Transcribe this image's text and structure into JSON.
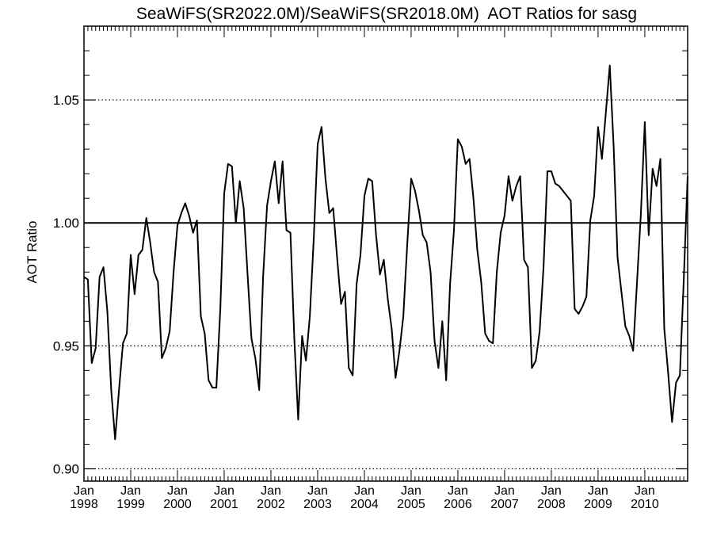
{
  "chart_data": {
    "type": "line",
    "title": "SeaWiFS(SR2022.0M)/SeaWiFS(SR2018.0M)  AOT Ratios for sasg",
    "ylabel": "AOT Ratio",
    "xlabel": "",
    "x_range": [
      "1998-01",
      "2010-12"
    ],
    "ylim": [
      0.895,
      1.08
    ],
    "yticks": [
      {
        "value": 0.9,
        "label": "0.90"
      },
      {
        "value": 0.95,
        "label": "0.95"
      },
      {
        "value": 1.0,
        "label": "1.00"
      },
      {
        "value": 1.05,
        "label": "1.05"
      }
    ],
    "xticks": [
      {
        "month": "Jan",
        "year": "1998",
        "date": "1998-01"
      },
      {
        "month": "Jan",
        "year": "1999",
        "date": "1999-01"
      },
      {
        "month": "Jan",
        "year": "2000",
        "date": "2000-01"
      },
      {
        "month": "Jan",
        "year": "2001",
        "date": "2001-01"
      },
      {
        "month": "Jan",
        "year": "2002",
        "date": "2002-01"
      },
      {
        "month": "Jan",
        "year": "2003",
        "date": "2003-01"
      },
      {
        "month": "Jan",
        "year": "2004",
        "date": "2004-01"
      },
      {
        "month": "Jan",
        "year": "2005",
        "date": "2005-01"
      },
      {
        "month": "Jan",
        "year": "2006",
        "date": "2006-01"
      },
      {
        "month": "Jan",
        "year": "2007",
        "date": "2007-01"
      },
      {
        "month": "Jan",
        "year": "2008",
        "date": "2008-01"
      },
      {
        "month": "Jan",
        "year": "2009",
        "date": "2009-01"
      },
      {
        "month": "Jan",
        "year": "2010",
        "date": "2010-01"
      }
    ],
    "grid": "dotted horizontal lines at labeled y ticks",
    "reference_line": 1.0,
    "series": [
      {
        "x": [
          "1998-01",
          "1998-02",
          "1998-03",
          "1998-04",
          "1998-05",
          "1998-06",
          "1998-07",
          "1998-08",
          "1998-09",
          "1998-10",
          "1998-11",
          "1998-12",
          "1999-01",
          "1999-02",
          "1999-03",
          "1999-04",
          "1999-05",
          "1999-06",
          "1999-07",
          "1999-08",
          "1999-09",
          "1999-10",
          "1999-11",
          "1999-12",
          "2000-01",
          "2000-02",
          "2000-03",
          "2000-04",
          "2000-05",
          "2000-06",
          "2000-07",
          "2000-08",
          "2000-09",
          "2000-10",
          "2000-11",
          "2000-12",
          "2001-01",
          "2001-02",
          "2001-03",
          "2001-04",
          "2001-05",
          "2001-06",
          "2001-07",
          "2001-08",
          "2001-09",
          "2001-10",
          "2001-11",
          "2001-12",
          "2002-01",
          "2002-02",
          "2002-03",
          "2002-04",
          "2002-05",
          "2002-06",
          "2002-07",
          "2002-08",
          "2002-09",
          "2002-10",
          "2002-11",
          "2002-12",
          "2003-01",
          "2003-02",
          "2003-03",
          "2003-04",
          "2003-05",
          "2003-06",
          "2003-07",
          "2003-08",
          "2003-09",
          "2003-10",
          "2003-11",
          "2003-12",
          "2004-01",
          "2004-02",
          "2004-03",
          "2004-04",
          "2004-05",
          "2004-06",
          "2004-07",
          "2004-08",
          "2004-09",
          "2004-10",
          "2004-11",
          "2004-12",
          "2005-01",
          "2005-02",
          "2005-03",
          "2005-04",
          "2005-05",
          "2005-06",
          "2005-07",
          "2005-08",
          "2005-09",
          "2005-10",
          "2005-11",
          "2005-12",
          "2006-01",
          "2006-02",
          "2006-03",
          "2006-04",
          "2006-05",
          "2006-06",
          "2006-07",
          "2006-08",
          "2006-09",
          "2006-10",
          "2006-11",
          "2006-12",
          "2007-01",
          "2007-02",
          "2007-03",
          "2007-04",
          "2007-05",
          "2007-06",
          "2007-07",
          "2007-08",
          "2007-09",
          "2007-10",
          "2007-11",
          "2007-12",
          "2008-01",
          "2008-02",
          "2008-03",
          "2008-04",
          "2008-05",
          "2008-06",
          "2008-07",
          "2008-08",
          "2008-09",
          "2008-10",
          "2008-11",
          "2008-12",
          "2009-01",
          "2009-02",
          "2009-03",
          "2009-04",
          "2009-05",
          "2009-06",
          "2009-07",
          "2009-08",
          "2009-09",
          "2009-10",
          "2009-11",
          "2009-12",
          "2010-01",
          "2010-02",
          "2010-03",
          "2010-04",
          "2010-05",
          "2010-06",
          "2010-07",
          "2010-08",
          "2010-09",
          "2010-10",
          "2010-11",
          "2010-12"
        ],
        "values": [
          0.978,
          0.977,
          0.943,
          0.949,
          0.978,
          0.982,
          0.964,
          0.932,
          0.912,
          0.932,
          0.951,
          0.955,
          0.987,
          0.971,
          0.987,
          0.989,
          1.002,
          0.992,
          0.98,
          0.976,
          0.945,
          0.949,
          0.956,
          0.98,
          0.999,
          1.004,
          1.008,
          1.003,
          0.996,
          1.001,
          0.962,
          0.955,
          0.936,
          0.933,
          0.933,
          0.965,
          1.012,
          1.024,
          1.023,
          1.0,
          1.017,
          1.006,
          0.979,
          0.953,
          0.945,
          0.932,
          0.978,
          1.007,
          1.017,
          1.025,
          1.008,
          1.025,
          0.997,
          0.996,
          0.953,
          0.92,
          0.954,
          0.944,
          0.962,
          0.994,
          1.032,
          1.039,
          1.018,
          1.004,
          1.006,
          0.986,
          0.967,
          0.972,
          0.941,
          0.938,
          0.975,
          0.987,
          1.011,
          1.018,
          1.017,
          0.995,
          0.979,
          0.985,
          0.969,
          0.957,
          0.937,
          0.948,
          0.962,
          0.991,
          1.018,
          1.013,
          1.005,
          0.995,
          0.992,
          0.98,
          0.952,
          0.941,
          0.96,
          0.936,
          0.975,
          0.997,
          1.034,
          1.031,
          1.024,
          1.026,
          1.01,
          0.989,
          0.976,
          0.955,
          0.952,
          0.951,
          0.98,
          0.996,
          1.003,
          1.019,
          1.009,
          1.015,
          1.019,
          0.985,
          0.982,
          0.941,
          0.944,
          0.956,
          0.982,
          1.021,
          1.021,
          1.016,
          1.015,
          1.013,
          1.011,
          1.009,
          0.965,
          0.963,
          0.966,
          0.97,
          1.001,
          1.011,
          1.039,
          1.026,
          1.045,
          1.064,
          1.031,
          0.986,
          0.972,
          0.958,
          0.954,
          0.948,
          0.976,
          1.004,
          1.041,
          0.995,
          1.022,
          1.015,
          1.026,
          0.957,
          0.939,
          0.919,
          0.935,
          0.938,
          0.977,
          1.019
        ]
      }
    ]
  }
}
